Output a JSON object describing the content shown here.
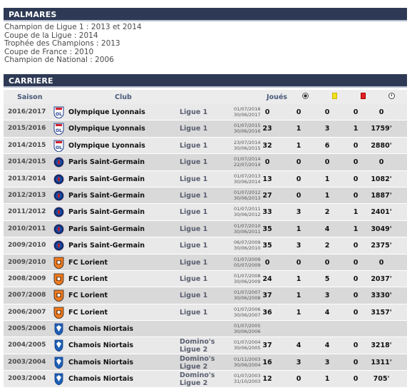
{
  "palmares": {
    "title": "PALMARES",
    "items": [
      "Champion de Ligue 1 : 2013 et 2014",
      "Coupe de la Ligue : 2014",
      "Trophée des Champions : 2013",
      "Coupe de France : 2010",
      "Champion de National : 2006"
    ]
  },
  "carriere": {
    "title": "CARRIERE",
    "columns": {
      "saison": "Saison",
      "club": "Club",
      "joues": "Joués",
      "goals_icon": "ball-icon",
      "yellow_icon": "yellow-card-icon",
      "red_icon": "red-card-icon",
      "minutes_icon": "clock-icon"
    },
    "rows": [
      {
        "season": "2016/2017",
        "club": "Olympique Lyonnais",
        "league": "Ligue 1",
        "league2": "",
        "start": "01/07/2016",
        "end": "30/06/2017",
        "played": "0",
        "goals": "0",
        "yellow": "0",
        "red": "0",
        "minutes": "0",
        "logo": "lyon"
      },
      {
        "season": "2015/2016",
        "club": "Olympique Lyonnais",
        "league": "Ligue 1",
        "league2": "",
        "start": "01/07/2015",
        "end": "30/06/2016",
        "played": "23",
        "goals": "1",
        "yellow": "3",
        "red": "1",
        "minutes": "1759'",
        "logo": "lyon"
      },
      {
        "season": "2014/2015",
        "club": "Olympique Lyonnais",
        "league": "Ligue 1",
        "league2": "",
        "start": "23/07/2014",
        "end": "30/06/2015",
        "played": "32",
        "goals": "1",
        "yellow": "6",
        "red": "0",
        "minutes": "2880'",
        "logo": "lyon"
      },
      {
        "season": "2014/2015",
        "club": "Paris Saint-Germain",
        "league": "Ligue 1",
        "league2": "",
        "start": "01/07/2014",
        "end": "22/07/2014",
        "played": "0",
        "goals": "0",
        "yellow": "0",
        "red": "0",
        "minutes": "0",
        "logo": "psg"
      },
      {
        "season": "2013/2014",
        "club": "Paris Saint-Germain",
        "league": "Ligue 1",
        "league2": "",
        "start": "01/07/2013",
        "end": "30/06/2014",
        "played": "13",
        "goals": "0",
        "yellow": "1",
        "red": "0",
        "minutes": "1082'",
        "logo": "psg"
      },
      {
        "season": "2012/2013",
        "club": "Paris Saint-Germain",
        "league": "Ligue 1",
        "league2": "",
        "start": "01/07/2012",
        "end": "30/06/2013",
        "played": "27",
        "goals": "0",
        "yellow": "1",
        "red": "0",
        "minutes": "1887'",
        "logo": "psg"
      },
      {
        "season": "2011/2012",
        "club": "Paris Saint-Germain",
        "league": "Ligue 1",
        "league2": "",
        "start": "01/07/2011",
        "end": "30/06/2012",
        "played": "33",
        "goals": "3",
        "yellow": "2",
        "red": "1",
        "minutes": "2401'",
        "logo": "psg"
      },
      {
        "season": "2010/2011",
        "club": "Paris Saint-Germain",
        "league": "Ligue 1",
        "league2": "",
        "start": "01/07/2010",
        "end": "30/06/2011",
        "played": "35",
        "goals": "1",
        "yellow": "4",
        "red": "1",
        "minutes": "3049'",
        "logo": "psg"
      },
      {
        "season": "2009/2010",
        "club": "Paris Saint-Germain",
        "league": "Ligue 1",
        "league2": "",
        "start": "06/07/2009",
        "end": "30/06/2010",
        "played": "35",
        "goals": "3",
        "yellow": "2",
        "red": "0",
        "minutes": "2375'",
        "logo": "psg"
      },
      {
        "season": "2009/2010",
        "club": "FC Lorient",
        "league": "Ligue 1",
        "league2": "",
        "start": "01/07/2009",
        "end": "05/07/2009",
        "played": "0",
        "goals": "0",
        "yellow": "0",
        "red": "0",
        "minutes": "0",
        "logo": "lorient"
      },
      {
        "season": "2008/2009",
        "club": "FC Lorient",
        "league": "Ligue 1",
        "league2": "",
        "start": "01/07/2008",
        "end": "30/06/2009",
        "played": "24",
        "goals": "1",
        "yellow": "5",
        "red": "0",
        "minutes": "2037'",
        "logo": "lorient"
      },
      {
        "season": "2007/2008",
        "club": "FC Lorient",
        "league": "Ligue 1",
        "league2": "",
        "start": "01/07/2007",
        "end": "30/06/2008",
        "played": "37",
        "goals": "1",
        "yellow": "3",
        "red": "0",
        "minutes": "3330'",
        "logo": "lorient"
      },
      {
        "season": "2006/2007",
        "club": "FC Lorient",
        "league": "Ligue 1",
        "league2": "",
        "start": "01/07/2006",
        "end": "30/06/2007",
        "played": "36",
        "goals": "1",
        "yellow": "4",
        "red": "0",
        "minutes": "3157'",
        "logo": "lorient"
      },
      {
        "season": "2005/2006",
        "club": "Chamois Niortais",
        "league": "",
        "league2": "",
        "start": "01/07/2005",
        "end": "30/06/2006",
        "played": "",
        "goals": "",
        "yellow": "",
        "red": "",
        "minutes": "",
        "logo": "niort"
      },
      {
        "season": "2004/2005",
        "club": "Chamois Niortais",
        "league": "Domino's",
        "league2": "Ligue 2",
        "start": "01/07/2004",
        "end": "30/06/2005",
        "played": "37",
        "goals": "4",
        "yellow": "4",
        "red": "0",
        "minutes": "3218'",
        "logo": "niort"
      },
      {
        "season": "2003/2004",
        "club": "Chamois Niortais",
        "league": "Domino's",
        "league2": "Ligue 2",
        "start": "01/11/2003",
        "end": "30/06/2004",
        "played": "16",
        "goals": "3",
        "yellow": "3",
        "red": "0",
        "minutes": "1311'",
        "logo": "niort"
      },
      {
        "season": "2003/2004",
        "club": "Chamois Niortais",
        "league": "Domino's",
        "league2": "Ligue 2",
        "start": "01/07/2003",
        "end": "31/10/2003",
        "played": "12",
        "goals": "0",
        "yellow": "1",
        "red": "0",
        "minutes": "705'",
        "logo": "niort"
      }
    ]
  },
  "colors": {
    "header_bg": "#2e3a55",
    "row_even": "#e9e9e9",
    "row_odd": "#d9d9d9"
  }
}
